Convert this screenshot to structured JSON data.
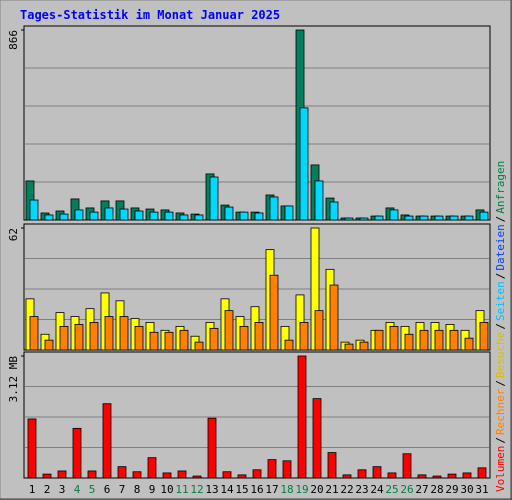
{
  "title": "Tages-Statistik im Monat Januar 2025",
  "legend": [
    {
      "name": "Volumen",
      "color": "#ff0000"
    },
    {
      "name": "Rechner",
      "color": "#ff8000"
    },
    {
      "name": "Besuche",
      "color": "#d8c000"
    },
    {
      "name": "Seiten",
      "color": "#00c0ff"
    },
    {
      "name": "Dateien",
      "color": "#0040ff"
    },
    {
      "name": "Anfragen",
      "color": "#008040"
    }
  ],
  "legend_separator": "/",
  "chart_data": [
    {
      "type": "bar",
      "ylim": [
        0,
        866
      ],
      "yticks": [
        866
      ],
      "grid": 5,
      "series": [
        {
          "color": "#00805c",
          "values": [
            178,
            32,
            41,
            96,
            55,
            87,
            87,
            55,
            50,
            46,
            32,
            27,
            210,
            68,
            36,
            36,
            114,
            64,
            866,
            251,
            100,
            9,
            9,
            18,
            55,
            23,
            18,
            18,
            18,
            18,
            46
          ]
        },
        {
          "color": "#00d8ff",
          "values": [
            91,
            23,
            27,
            46,
            36,
            55,
            50,
            41,
            36,
            36,
            23,
            23,
            196,
            59,
            36,
            32,
            105,
            64,
            511,
            178,
            82,
            9,
            9,
            18,
            46,
            18,
            18,
            18,
            18,
            18,
            36
          ]
        }
      ]
    },
    {
      "type": "bar",
      "ylim": [
        0,
        62
      ],
      "yticks": [
        62
      ],
      "grid": 4,
      "series": [
        {
          "color": "#ffff00",
          "values": [
            26,
            8,
            19,
            17,
            21,
            29,
            25,
            16,
            14,
            10,
            12,
            7,
            14,
            26,
            17,
            22,
            51,
            12,
            28,
            62,
            41,
            4,
            5,
            10,
            14,
            12,
            14,
            14,
            13,
            10,
            20
          ]
        },
        {
          "color": "#ff8000",
          "values": [
            17,
            5,
            12,
            13,
            14,
            17,
            17,
            12,
            9,
            9,
            10,
            4,
            11,
            20,
            12,
            14,
            38,
            5,
            14,
            20,
            33,
            3,
            4,
            10,
            12,
            8,
            10,
            10,
            10,
            6,
            14
          ]
        }
      ]
    },
    {
      "type": "bar",
      "ylim": [
        0,
        3.12
      ],
      "yticks": [
        {
          "value": 3.12,
          "label": "3.12 MB"
        }
      ],
      "grid": 4,
      "categories": [
        "1",
        "2",
        "3",
        "4",
        "5",
        "6",
        "7",
        "8",
        "9",
        "10",
        "11",
        "12",
        "13",
        "14",
        "15",
        "16",
        "17",
        "18",
        "19",
        "20",
        "21",
        "22",
        "23",
        "24",
        "25",
        "26",
        "27",
        "28",
        "29",
        "30",
        "31"
      ],
      "highlight": {
        "indices": [
          3,
          4,
          10,
          11,
          17,
          18,
          24,
          25
        ],
        "color": "#008040"
      },
      "series": [
        {
          "color": "#ff0000",
          "values": [
            1.51,
            0.1,
            0.18,
            1.27,
            0.18,
            1.9,
            0.29,
            0.16,
            0.52,
            0.13,
            0.18,
            0.05,
            1.53,
            0.16,
            0.08,
            0.21,
            0.47,
            0.44,
            3.12,
            2.03,
            0.65,
            0.08,
            0.21,
            0.29,
            0.13,
            0.62,
            0.08,
            0.05,
            0.1,
            0.13,
            0.26
          ]
        }
      ]
    }
  ]
}
